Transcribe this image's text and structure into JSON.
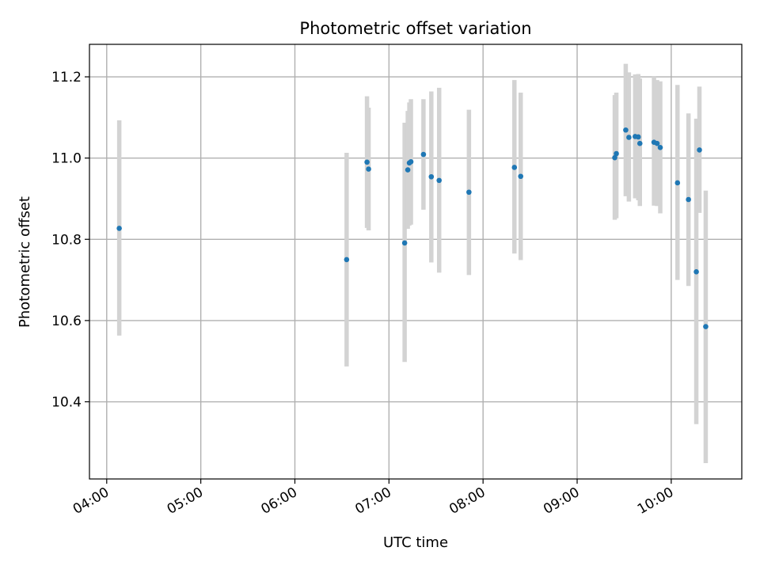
{
  "chart_data": {
    "type": "scatter",
    "title": "Photometric offset variation",
    "xlabel": "UTC time",
    "ylabel": "Photometric offset",
    "x_ticks": [
      "04:00",
      "05:00",
      "06:00",
      "07:00",
      "08:00",
      "09:00",
      "10:00"
    ],
    "y_ticks": [
      "10.4",
      "10.6",
      "10.8",
      "11.0",
      "11.2"
    ],
    "xlim": [
      "03:49",
      "10:45"
    ],
    "ylim": [
      10.21,
      11.28
    ],
    "grid": true,
    "colors": {
      "point": "#1f77b4",
      "errorbar": "#d3d3d3",
      "grid": "#b0b0b0"
    },
    "points": [
      {
        "x": "04:08",
        "y": 10.827,
        "ylow": 10.563,
        "yhigh": 11.093
      },
      {
        "x": "06:33",
        "y": 10.75,
        "ylow": 10.487,
        "yhigh": 11.013
      },
      {
        "x": "06:46",
        "y": 10.99,
        "ylow": 10.828,
        "yhigh": 11.152
      },
      {
        "x": "06:47",
        "y": 10.973,
        "ylow": 10.822,
        "yhigh": 11.124
      },
      {
        "x": "07:10",
        "y": 10.791,
        "ylow": 10.498,
        "yhigh": 11.087
      },
      {
        "x": "07:12",
        "y": 10.971,
        "ylow": 10.826,
        "yhigh": 11.116
      },
      {
        "x": "07:13",
        "y": 10.988,
        "ylow": 10.834,
        "yhigh": 11.137
      },
      {
        "x": "07:14",
        "y": 10.991,
        "ylow": 10.836,
        "yhigh": 11.145
      },
      {
        "x": "07:22",
        "y": 11.009,
        "ylow": 10.873,
        "yhigh": 11.145
      },
      {
        "x": "07:27",
        "y": 10.954,
        "ylow": 10.743,
        "yhigh": 11.164
      },
      {
        "x": "07:32",
        "y": 10.945,
        "ylow": 10.718,
        "yhigh": 11.173
      },
      {
        "x": "07:51",
        "y": 10.916,
        "ylow": 10.712,
        "yhigh": 11.119
      },
      {
        "x": "08:20",
        "y": 10.977,
        "ylow": 10.765,
        "yhigh": 11.192
      },
      {
        "x": "08:24",
        "y": 10.955,
        "ylow": 10.749,
        "yhigh": 11.161
      },
      {
        "x": "09:24",
        "y": 11.001,
        "ylow": 10.848,
        "yhigh": 11.155
      },
      {
        "x": "09:25",
        "y": 11.011,
        "ylow": 10.852,
        "yhigh": 11.161
      },
      {
        "x": "09:31",
        "y": 11.069,
        "ylow": 10.906,
        "yhigh": 11.232
      },
      {
        "x": "09:33",
        "y": 11.051,
        "ylow": 10.893,
        "yhigh": 11.211
      },
      {
        "x": "09:37",
        "y": 11.053,
        "ylow": 10.901,
        "yhigh": 11.206
      },
      {
        "x": "09:39",
        "y": 11.052,
        "ylow": 10.896,
        "yhigh": 11.207
      },
      {
        "x": "09:40",
        "y": 11.036,
        "ylow": 10.882,
        "yhigh": 11.196
      },
      {
        "x": "09:49",
        "y": 11.039,
        "ylow": 10.883,
        "yhigh": 11.202
      },
      {
        "x": "09:51",
        "y": 11.036,
        "ylow": 10.882,
        "yhigh": 11.192
      },
      {
        "x": "09:53",
        "y": 11.026,
        "ylow": 10.864,
        "yhigh": 11.189
      },
      {
        "x": "10:04",
        "y": 10.939,
        "ylow": 10.7,
        "yhigh": 11.18
      },
      {
        "x": "10:11",
        "y": 10.898,
        "ylow": 10.685,
        "yhigh": 11.11
      },
      {
        "x": "10:16",
        "y": 10.72,
        "ylow": 10.345,
        "yhigh": 11.097
      },
      {
        "x": "10:18",
        "y": 11.02,
        "ylow": 10.865,
        "yhigh": 11.176
      },
      {
        "x": "10:22",
        "y": 10.585,
        "ylow": 10.249,
        "yhigh": 10.92
      }
    ]
  }
}
